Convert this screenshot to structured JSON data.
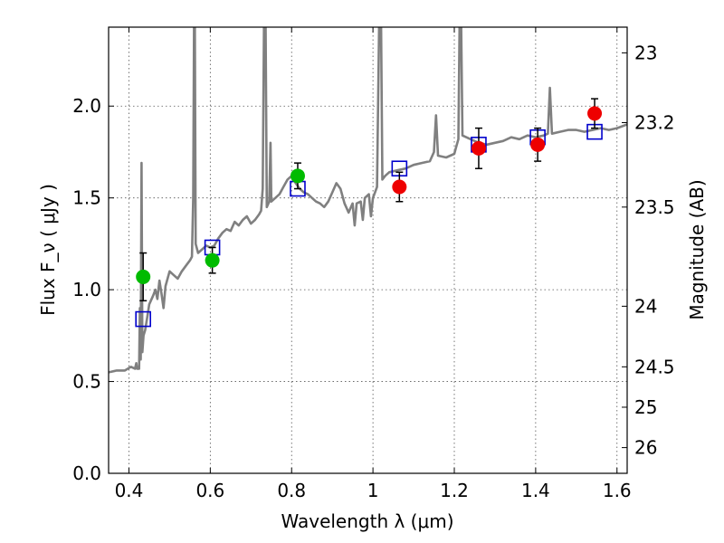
{
  "chart_data": {
    "type": "scatter",
    "xlabel": "Wavelength  λ (μm)",
    "ylabel": "Flux  F_ν  ( μJy )",
    "ylabel_right": "Magnitude (AB)",
    "xlim": [
      0.35,
      1.625
    ],
    "ylim": [
      0.0,
      2.43
    ],
    "grid": true,
    "x_ticks": [
      0.4,
      0.6,
      0.8,
      1.0,
      1.2,
      1.4,
      1.6
    ],
    "x_tick_labels": [
      "0.4",
      "0.6",
      "0.8",
      "1",
      "1.2",
      "1.4",
      "1.6"
    ],
    "y_ticks": [
      0.0,
      0.5,
      1.0,
      1.5,
      2.0
    ],
    "y_tick_labels": [
      "0.0",
      "0.5",
      "1.0",
      "1.5",
      "2.0"
    ],
    "right_ticks": [
      {
        "label": "23",
        "flux": 2.29
      },
      {
        "label": "23.2",
        "flux": 1.91
      },
      {
        "label": "23.5",
        "flux": 1.45
      },
      {
        "label": "24",
        "flux": 0.91
      },
      {
        "label": "24.5",
        "flux": 0.58
      },
      {
        "label": "25",
        "flux": 0.36
      },
      {
        "label": "26",
        "flux": 0.14
      }
    ],
    "colors": {
      "template": "#808080",
      "model": "#0000cc",
      "obs_optical": "#00bb00",
      "obs_nir": "#ee0000",
      "errorbar": "#000000",
      "grid": "#555555"
    },
    "series": [
      {
        "values": [
          {
            "x": 0.435,
            "y": 1.07,
            "err": 0.13,
            "color": "#00bb00"
          },
          {
            "x": 0.605,
            "y": 1.16,
            "err": 0.07,
            "color": "#00bb00"
          },
          {
            "x": 0.815,
            "y": 1.62,
            "err": 0.07,
            "color": "#00bb00"
          },
          {
            "x": 1.065,
            "y": 1.56,
            "err": 0.08,
            "color": "#ee0000"
          },
          {
            "x": 1.26,
            "y": 1.77,
            "err": 0.11,
            "color": "#ee0000"
          },
          {
            "x": 1.405,
            "y": 1.79,
            "err": 0.09,
            "color": "#ee0000"
          },
          {
            "x": 1.545,
            "y": 1.96,
            "err": 0.08,
            "color": "#ee0000"
          }
        ]
      },
      {
        "values": [
          {
            "x": 0.435,
            "y": 0.84
          },
          {
            "x": 0.605,
            "y": 1.23
          },
          {
            "x": 0.815,
            "y": 1.55
          },
          {
            "x": 1.065,
            "y": 1.66
          },
          {
            "x": 1.26,
            "y": 1.79
          },
          {
            "x": 1.405,
            "y": 1.83
          },
          {
            "x": 1.545,
            "y": 1.86
          }
        ]
      },
      {
        "values": [
          [
            0.35,
            0.55
          ],
          [
            0.37,
            0.56
          ],
          [
            0.39,
            0.56
          ],
          [
            0.405,
            0.58
          ],
          [
            0.415,
            0.57
          ],
          [
            0.418,
            0.6
          ],
          [
            0.42,
            0.57
          ],
          [
            0.425,
            0.57
          ],
          [
            0.427,
            0.9
          ],
          [
            0.429,
            0.62
          ],
          [
            0.431,
            1.69
          ],
          [
            0.433,
            0.66
          ],
          [
            0.436,
            0.75
          ],
          [
            0.44,
            0.78
          ],
          [
            0.445,
            0.85
          ],
          [
            0.45,
            0.92
          ],
          [
            0.46,
            0.97
          ],
          [
            0.465,
            1.0
          ],
          [
            0.47,
            0.95
          ],
          [
            0.475,
            1.05
          ],
          [
            0.48,
            0.98
          ],
          [
            0.485,
            0.9
          ],
          [
            0.49,
            1.02
          ],
          [
            0.5,
            1.1
          ],
          [
            0.51,
            1.08
          ],
          [
            0.52,
            1.06
          ],
          [
            0.53,
            1.1
          ],
          [
            0.54,
            1.13
          ],
          [
            0.55,
            1.16
          ],
          [
            0.555,
            1.18
          ],
          [
            0.558,
            1.5
          ],
          [
            0.56,
            2.43
          ],
          [
            0.562,
            2.43
          ],
          [
            0.564,
            1.25
          ],
          [
            0.57,
            1.2
          ],
          [
            0.58,
            1.22
          ],
          [
            0.59,
            1.24
          ],
          [
            0.6,
            1.23
          ],
          [
            0.61,
            1.24
          ],
          [
            0.62,
            1.28
          ],
          [
            0.63,
            1.31
          ],
          [
            0.64,
            1.33
          ],
          [
            0.65,
            1.32
          ],
          [
            0.66,
            1.37
          ],
          [
            0.67,
            1.35
          ],
          [
            0.68,
            1.38
          ],
          [
            0.69,
            1.4
          ],
          [
            0.7,
            1.36
          ],
          [
            0.71,
            1.38
          ],
          [
            0.72,
            1.41
          ],
          [
            0.725,
            1.43
          ],
          [
            0.729,
            1.55
          ],
          [
            0.732,
            2.43
          ],
          [
            0.736,
            2.43
          ],
          [
            0.739,
            1.45
          ],
          [
            0.745,
            1.48
          ],
          [
            0.748,
            1.8
          ],
          [
            0.75,
            1.48
          ],
          [
            0.76,
            1.5
          ],
          [
            0.77,
            1.52
          ],
          [
            0.78,
            1.56
          ],
          [
            0.79,
            1.6
          ],
          [
            0.8,
            1.62
          ],
          [
            0.81,
            1.58
          ],
          [
            0.82,
            1.55
          ],
          [
            0.83,
            1.53
          ],
          [
            0.84,
            1.52
          ],
          [
            0.85,
            1.5
          ],
          [
            0.86,
            1.48
          ],
          [
            0.87,
            1.47
          ],
          [
            0.875,
            1.46
          ],
          [
            0.88,
            1.45
          ],
          [
            0.89,
            1.48
          ],
          [
            0.9,
            1.53
          ],
          [
            0.91,
            1.58
          ],
          [
            0.92,
            1.55
          ],
          [
            0.93,
            1.47
          ],
          [
            0.94,
            1.42
          ],
          [
            0.95,
            1.47
          ],
          [
            0.955,
            1.35
          ],
          [
            0.96,
            1.47
          ],
          [
            0.97,
            1.48
          ],
          [
            0.975,
            1.38
          ],
          [
            0.98,
            1.5
          ],
          [
            0.99,
            1.52
          ],
          [
            0.995,
            1.4
          ],
          [
            1.0,
            1.5
          ],
          [
            1.005,
            1.53
          ],
          [
            1.01,
            1.56
          ],
          [
            1.015,
            2.43
          ],
          [
            1.02,
            2.43
          ],
          [
            1.023,
            1.6
          ],
          [
            1.03,
            1.62
          ],
          [
            1.04,
            1.64
          ],
          [
            1.06,
            1.65
          ],
          [
            1.08,
            1.66
          ],
          [
            1.1,
            1.68
          ],
          [
            1.12,
            1.69
          ],
          [
            1.14,
            1.7
          ],
          [
            1.15,
            1.75
          ],
          [
            1.155,
            1.95
          ],
          [
            1.16,
            1.73
          ],
          [
            1.18,
            1.72
          ],
          [
            1.2,
            1.74
          ],
          [
            1.205,
            1.78
          ],
          [
            1.21,
            1.82
          ],
          [
            1.213,
            2.43
          ],
          [
            1.217,
            2.43
          ],
          [
            1.22,
            1.84
          ],
          [
            1.24,
            1.82
          ],
          [
            1.26,
            1.8
          ],
          [
            1.28,
            1.79
          ],
          [
            1.3,
            1.8
          ],
          [
            1.32,
            1.81
          ],
          [
            1.34,
            1.83
          ],
          [
            1.36,
            1.82
          ],
          [
            1.38,
            1.84
          ],
          [
            1.4,
            1.83
          ],
          [
            1.42,
            1.84
          ],
          [
            1.43,
            1.85
          ],
          [
            1.435,
            2.1
          ],
          [
            1.44,
            1.85
          ],
          [
            1.46,
            1.86
          ],
          [
            1.48,
            1.87
          ],
          [
            1.5,
            1.87
          ],
          [
            1.52,
            1.86
          ],
          [
            1.54,
            1.87
          ],
          [
            1.56,
            1.88
          ],
          [
            1.58,
            1.87
          ],
          [
            1.6,
            1.88
          ],
          [
            1.625,
            1.9
          ]
        ]
      }
    ]
  }
}
